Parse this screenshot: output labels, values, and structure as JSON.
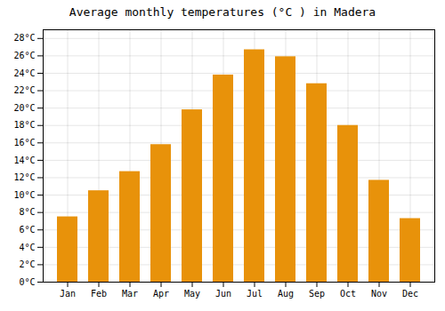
{
  "chart_data": {
    "type": "bar",
    "title": "Average monthly temperatures (°C ) in Madera",
    "categories": [
      "Jan",
      "Feb",
      "Mar",
      "Apr",
      "May",
      "Jun",
      "Jul",
      "Aug",
      "Sep",
      "Oct",
      "Nov",
      "Dec"
    ],
    "values": [
      7.5,
      10.5,
      12.7,
      15.8,
      19.8,
      23.8,
      26.7,
      25.9,
      22.8,
      18.0,
      11.7,
      7.3
    ],
    "color": "#E8920A",
    "ylim": [
      0,
      29
    ],
    "yticks": [
      {
        "value": 0,
        "label": "0°C"
      },
      {
        "value": 2,
        "label": "2°C"
      },
      {
        "value": 4,
        "label": "4°C"
      },
      {
        "value": 6,
        "label": "6°C"
      },
      {
        "value": 8,
        "label": "8°C"
      },
      {
        "value": 10,
        "label": "10°C"
      },
      {
        "value": 12,
        "label": "12°C"
      },
      {
        "value": 14,
        "label": "14°C"
      },
      {
        "value": 16,
        "label": "16°C"
      },
      {
        "value": 18,
        "label": "18°C"
      },
      {
        "value": 20,
        "label": "20°C"
      },
      {
        "value": 22,
        "label": "22°C"
      },
      {
        "value": 24,
        "label": "24°C"
      },
      {
        "value": 26,
        "label": "26°C"
      },
      {
        "value": 28,
        "label": "28°C"
      }
    ],
    "grid": true
  }
}
